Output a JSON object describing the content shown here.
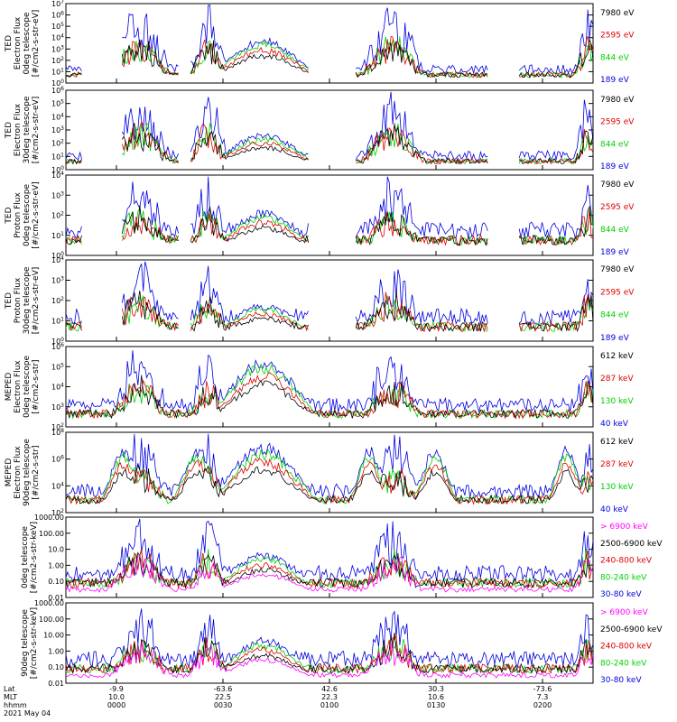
{
  "colors": {
    "black": "#000000",
    "red": "#e00000",
    "green": "#00d000",
    "blue": "#0000e0",
    "magenta": "#ff00ff"
  },
  "chart_data": [
    {
      "type": "line",
      "panel": "TED electron 0deg",
      "ylabel_lines": [
        "TED",
        "Electron Flux",
        "0deg telescope",
        "[#/cm2-s-str-eV]"
      ],
      "yticks": [
        "10^0",
        "10^1",
        "10^2",
        "10^3",
        "10^4",
        "10^5",
        "10^6",
        "10^7"
      ],
      "legend": [
        {
          "text": "7980 eV",
          "color": "black"
        },
        {
          "text": "2595 eV",
          "color": "red"
        },
        {
          "text": "844 eV",
          "color": "green"
        },
        {
          "text": "189 eV",
          "color": "blue"
        }
      ]
    },
    {
      "type": "line",
      "panel": "TED electron 30deg",
      "ylabel_lines": [
        "TED",
        "Electron Flux",
        "30deg telescope",
        "[#/cm2-s-str-eV]"
      ],
      "yticks": [
        "10^0",
        "10^1",
        "10^2",
        "10^3",
        "10^4",
        "10^5",
        "10^6"
      ],
      "legend": [
        {
          "text": "7980 eV",
          "color": "black"
        },
        {
          "text": "2595 eV",
          "color": "red"
        },
        {
          "text": "844 eV",
          "color": "green"
        },
        {
          "text": "189 eV",
          "color": "blue"
        }
      ]
    },
    {
      "type": "line",
      "panel": "TED proton 0deg",
      "ylabel_lines": [
        "TED",
        "Proton Flux",
        "0deg telescope",
        "[#/cm2-s-str-eV]"
      ],
      "yticks": [
        "10^0",
        "10^1",
        "10^2",
        "10^3",
        "10^4"
      ],
      "legend": [
        {
          "text": "7980 eV",
          "color": "black"
        },
        {
          "text": "2595 eV",
          "color": "red"
        },
        {
          "text": "844 eV",
          "color": "green"
        },
        {
          "text": "189 eV",
          "color": "blue"
        }
      ]
    },
    {
      "type": "line",
      "panel": "TED proton 30deg",
      "ylabel_lines": [
        "TED",
        "Proton Flux",
        "30deg telescope",
        "[#/cm2-s-str-eV]"
      ],
      "yticks": [
        "10^0",
        "10^1",
        "10^2",
        "10^3",
        "10^4"
      ],
      "legend": [
        {
          "text": "7980 eV",
          "color": "black"
        },
        {
          "text": "2595 eV",
          "color": "red"
        },
        {
          "text": "844 eV",
          "color": "green"
        },
        {
          "text": "189 eV",
          "color": "blue"
        }
      ]
    },
    {
      "type": "line",
      "panel": "MEPED electron 0deg",
      "ylabel_lines": [
        "MEPED",
        "Electron Flux",
        "0deg telescope",
        "[#/cm2-s-str]"
      ],
      "yticks": [
        "10^2",
        "10^3",
        "10^4",
        "10^5",
        "10^6"
      ],
      "legend": [
        {
          "text": "612 keV",
          "color": "black"
        },
        {
          "text": "287 keV",
          "color": "red"
        },
        {
          "text": "130 keV",
          "color": "green"
        },
        {
          "text": "40 keV",
          "color": "blue"
        }
      ]
    },
    {
      "type": "line",
      "panel": "MEPED electron 90deg",
      "ylabel_lines": [
        "MEPED",
        "Electron Flux",
        "90deg telescope",
        "[#/cm2-s-str]"
      ],
      "yticks": [
        "10^2",
        "10^4",
        "10^6",
        "10^8"
      ],
      "legend": [
        {
          "text": "612 keV",
          "color": "black"
        },
        {
          "text": "287 keV",
          "color": "red"
        },
        {
          "text": "130 keV",
          "color": "green"
        },
        {
          "text": "40 keV",
          "color": "blue"
        }
      ]
    },
    {
      "type": "line",
      "panel": "MEPED proton 0deg",
      "ylabel_lines": [
        "0deg telescope",
        "[#/cm2-s-str-keV]"
      ],
      "yticks": [
        "0.01",
        "0.10",
        "1.00",
        "10.0",
        "100.00",
        "1000.00"
      ],
      "legend": [
        {
          "text": "> 6900 keV",
          "color": "magenta"
        },
        {
          "text": "2500-6900 keV",
          "color": "black"
        },
        {
          "text": "240-800 keV",
          "color": "red"
        },
        {
          "text": "80-240 keV",
          "color": "green"
        },
        {
          "text": "30-80 keV",
          "color": "blue"
        }
      ]
    },
    {
      "type": "line",
      "panel": "MEPED proton 90deg",
      "ylabel_lines": [
        "90deg telescope",
        "[#/cm2-s-str-keV]"
      ],
      "yticks": [
        "0.01",
        "0.10",
        "1.00",
        "10.00",
        "100.00",
        "1000.00"
      ],
      "legend": [
        {
          "text": "> 6900 keV",
          "color": "magenta"
        },
        {
          "text": "2500-6900 keV",
          "color": "black"
        },
        {
          "text": "240-800 keV",
          "color": "red"
        },
        {
          "text": "80-240 keV",
          "color": "green"
        },
        {
          "text": "30-80 keV",
          "color": "blue"
        }
      ]
    }
  ],
  "x_axis": {
    "row_labels": [
      "Lat",
      "MLT",
      "hhmm"
    ],
    "ticks": [
      {
        "lat": "-9.9",
        "mlt": "10.0",
        "hhmm": "0000"
      },
      {
        "lat": "-63.6",
        "mlt": "22.5",
        "hhmm": "0030"
      },
      {
        "lat": "42.6",
        "mlt": "22.3",
        "hhmm": "0100"
      },
      {
        "lat": "30.3",
        "mlt": "10.6",
        "hhmm": "0130"
      },
      {
        "lat": "-73.6",
        "mlt": "7.3",
        "hhmm": "0200"
      }
    ],
    "date": "2021 May 04"
  }
}
